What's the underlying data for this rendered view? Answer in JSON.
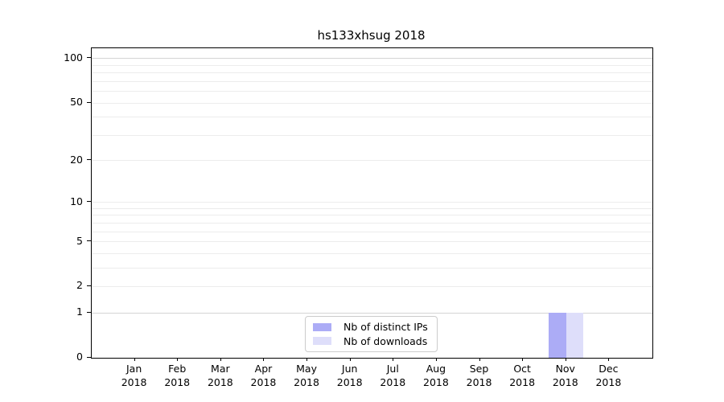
{
  "title": "hs133xhsug 2018",
  "figure_bg": "#ffffff",
  "chart_data": {
    "type": "bar",
    "title": "hs133xhsug 2018",
    "months": [
      "Jan",
      "Feb",
      "Mar",
      "Apr",
      "May",
      "Jun",
      "Jul",
      "Aug",
      "Sep",
      "Oct",
      "Nov",
      "Dec"
    ],
    "year": "2018",
    "series": [
      {
        "name": "Nb of distinct IPs",
        "color": "#acacf6",
        "values": [
          0,
          0,
          0,
          0,
          0,
          0,
          0,
          0,
          0,
          0,
          1,
          0
        ]
      },
      {
        "name": "Nb of downloads",
        "color": "#dedefa",
        "values": [
          0,
          0,
          0,
          0,
          0,
          0,
          0,
          0,
          0,
          0,
          1,
          0
        ]
      }
    ],
    "y_axis": {
      "scale": "log-like log10(1+v), linear 0-1",
      "ticks": [
        0,
        1,
        2,
        5,
        10,
        20,
        50,
        100
      ],
      "minor_gridlines": [
        3,
        4,
        6,
        7,
        8,
        9,
        30,
        40,
        60,
        70,
        80,
        90
      ],
      "emphasized_gridlines": [
        1,
        100
      ],
      "max": 115
    },
    "legend": {
      "position": "bottom-center",
      "entries": [
        "Nb of distinct IPs",
        "Nb of downloads"
      ]
    },
    "grid": true,
    "grid_minor_color": "#ececec",
    "grid_major_color": "#d4d4d4",
    "spine_color": "#000000"
  }
}
